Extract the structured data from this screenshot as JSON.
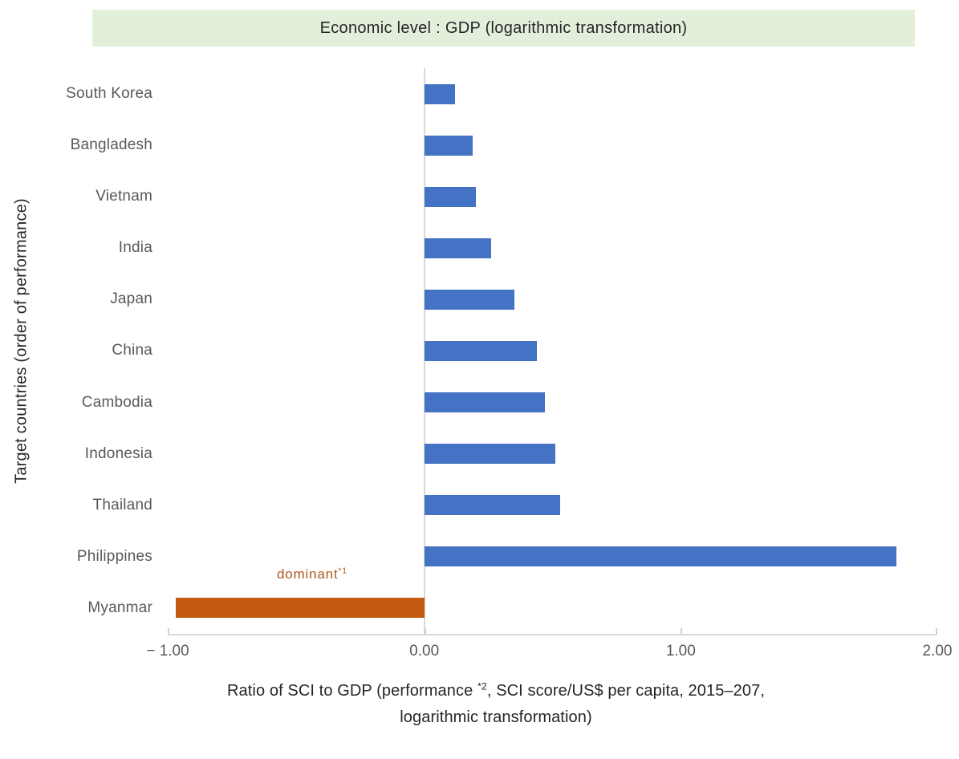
{
  "title": "Economic level : GDP (logarithmic transformation)",
  "y_axis_label": "Target countries (order of performance)",
  "annotation": {
    "text": "dominant",
    "superscript": "*1"
  },
  "x_axis_caption": {
    "line1_before_sup": "Ratio of SCI to GDP (performance ",
    "superscript": "*2",
    "line1_after_sup": ", SCI score/US$ per capita, 2015–207,",
    "line2": "logarithmic transformation)"
  },
  "colors": {
    "bar_default": "#4472C4",
    "bar_dominant": "#C55A11",
    "title_background": "#E2EFDA",
    "axis_line": "#D9D9D9",
    "tick_text": "#595959",
    "category_text": "#595959",
    "annotation_text": "#AC5A1E",
    "title_text": "#262626"
  },
  "chart_data": {
    "type": "bar",
    "orientation": "horizontal",
    "title": "Economic level : GDP (logarithmic transformation)",
    "xlabel": "Ratio of SCI to GDP (performance *2, SCI score/US$ per capita, 2015–207, logarithmic transformation)",
    "ylabel": "Target countries (order of performance)",
    "xlim": [
      -1.0,
      2.0
    ],
    "grid": "zero-line-only",
    "legend": "none",
    "x_ticks": [
      {
        "label": "− 1.00",
        "value": -1.0
      },
      {
        "label": "0.00",
        "value": 0.0
      },
      {
        "label": "1.00",
        "value": 1.0
      },
      {
        "label": "2.00",
        "value": 2.0
      }
    ],
    "categories": [
      "South Korea",
      "Bangladesh",
      "Vietnam",
      "India",
      "Japan",
      "China",
      "Cambodia",
      "Indonesia",
      "Thailand",
      "Philippines",
      "Myanmar"
    ],
    "values": [
      0.12,
      0.19,
      0.2,
      0.26,
      0.35,
      0.44,
      0.47,
      0.51,
      0.53,
      1.84,
      -0.97
    ],
    "bar_colors": [
      "#4472C4",
      "#4472C4",
      "#4472C4",
      "#4472C4",
      "#4472C4",
      "#4472C4",
      "#4472C4",
      "#4472C4",
      "#4472C4",
      "#4472C4",
      "#C55A11"
    ],
    "annotations": [
      {
        "text": "dominant *1",
        "target_category": "Myanmar",
        "color": "#AC5A1E"
      }
    ]
  }
}
